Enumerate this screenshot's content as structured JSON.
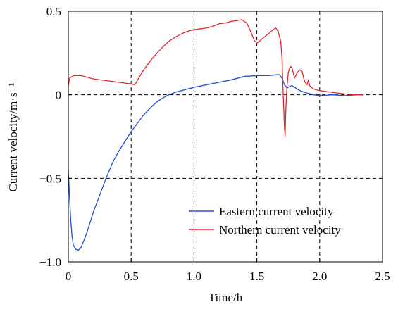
{
  "chart_data": {
    "type": "line",
    "xlabel": "Time/h",
    "ylabel": "Current velocity/m·s⁻¹",
    "xlim": [
      0,
      2.5
    ],
    "ylim": [
      -1.0,
      0.5
    ],
    "xticks": [
      0,
      0.5,
      1.0,
      1.5,
      2.0,
      2.5
    ],
    "xtick_labels": [
      "0",
      "0.5",
      "1.0",
      "1.5",
      "2.0",
      "2.5"
    ],
    "yticks": [
      -1.0,
      -0.5,
      0,
      0.5
    ],
    "ytick_labels": [
      "−1.0",
      "−0.5",
      "0",
      "0.5"
    ],
    "grid": "dashed",
    "legend": "bottom-right",
    "series": [
      {
        "name": "Eastern current velocity",
        "color": "#1f4fd6",
        "points": [
          [
            0.0,
            -0.45
          ],
          [
            0.01,
            -0.62
          ],
          [
            0.02,
            -0.76
          ],
          [
            0.03,
            -0.85
          ],
          [
            0.04,
            -0.9
          ],
          [
            0.06,
            -0.925
          ],
          [
            0.08,
            -0.93
          ],
          [
            0.1,
            -0.915
          ],
          [
            0.12,
            -0.88
          ],
          [
            0.15,
            -0.82
          ],
          [
            0.2,
            -0.7
          ],
          [
            0.25,
            -0.6
          ],
          [
            0.3,
            -0.5
          ],
          [
            0.35,
            -0.41
          ],
          [
            0.4,
            -0.34
          ],
          [
            0.45,
            -0.28
          ],
          [
            0.5,
            -0.22
          ],
          [
            0.55,
            -0.17
          ],
          [
            0.6,
            -0.12
          ],
          [
            0.65,
            -0.08
          ],
          [
            0.7,
            -0.045
          ],
          [
            0.75,
            -0.02
          ],
          [
            0.8,
            0.0
          ],
          [
            0.85,
            0.015
          ],
          [
            0.9,
            0.025
          ],
          [
            1.0,
            0.045
          ],
          [
            1.1,
            0.06
          ],
          [
            1.2,
            0.075
          ],
          [
            1.3,
            0.09
          ],
          [
            1.4,
            0.11
          ],
          [
            1.5,
            0.115
          ],
          [
            1.6,
            0.115
          ],
          [
            1.65,
            0.12
          ],
          [
            1.68,
            0.12
          ],
          [
            1.7,
            0.1
          ],
          [
            1.72,
            0.06
          ],
          [
            1.74,
            0.04
          ],
          [
            1.76,
            0.05
          ],
          [
            1.78,
            0.055
          ],
          [
            1.8,
            0.045
          ],
          [
            1.83,
            0.03
          ],
          [
            1.86,
            0.02
          ],
          [
            1.9,
            0.01
          ],
          [
            1.95,
            0.0
          ],
          [
            2.0,
            -0.005
          ],
          [
            2.1,
            0.0
          ],
          [
            2.2,
            -0.005
          ],
          [
            2.3,
            0.0
          ],
          [
            2.35,
            0.0
          ]
        ]
      },
      {
        "name": "Northern current velocity",
        "color": "#e8262a",
        "points": [
          [
            0.0,
            0.05
          ],
          [
            0.01,
            0.1
          ],
          [
            0.03,
            0.11
          ],
          [
            0.05,
            0.115
          ],
          [
            0.1,
            0.115
          ],
          [
            0.15,
            0.105
          ],
          [
            0.2,
            0.095
          ],
          [
            0.3,
            0.085
          ],
          [
            0.4,
            0.075
          ],
          [
            0.5,
            0.065
          ],
          [
            0.53,
            0.06
          ],
          [
            0.56,
            0.1
          ],
          [
            0.6,
            0.15
          ],
          [
            0.65,
            0.2
          ],
          [
            0.7,
            0.245
          ],
          [
            0.75,
            0.285
          ],
          [
            0.8,
            0.32
          ],
          [
            0.85,
            0.345
          ],
          [
            0.9,
            0.365
          ],
          [
            0.95,
            0.38
          ],
          [
            1.0,
            0.39
          ],
          [
            1.05,
            0.395
          ],
          [
            1.1,
            0.4
          ],
          [
            1.15,
            0.41
          ],
          [
            1.2,
            0.425
          ],
          [
            1.25,
            0.43
          ],
          [
            1.3,
            0.44
          ],
          [
            1.35,
            0.445
          ],
          [
            1.38,
            0.45
          ],
          [
            1.42,
            0.43
          ],
          [
            1.45,
            0.38
          ],
          [
            1.48,
            0.325
          ],
          [
            1.5,
            0.31
          ],
          [
            1.52,
            0.32
          ],
          [
            1.55,
            0.34
          ],
          [
            1.6,
            0.37
          ],
          [
            1.63,
            0.39
          ],
          [
            1.65,
            0.4
          ],
          [
            1.67,
            0.38
          ],
          [
            1.69,
            0.32
          ],
          [
            1.7,
            0.22
          ],
          [
            1.71,
            0.0
          ],
          [
            1.72,
            -0.2
          ],
          [
            1.725,
            -0.25
          ],
          [
            1.73,
            -0.1
          ],
          [
            1.74,
            0.05
          ],
          [
            1.75,
            0.13
          ],
          [
            1.76,
            0.16
          ],
          [
            1.77,
            0.17
          ],
          [
            1.78,
            0.16
          ],
          [
            1.8,
            0.1
          ],
          [
            1.82,
            0.13
          ],
          [
            1.84,
            0.15
          ],
          [
            1.86,
            0.14
          ],
          [
            1.88,
            0.08
          ],
          [
            1.9,
            0.06
          ],
          [
            1.91,
            0.09
          ],
          [
            1.92,
            0.055
          ],
          [
            1.95,
            0.035
          ],
          [
            2.0,
            0.025
          ],
          [
            2.1,
            0.015
          ],
          [
            2.2,
            0.005
          ],
          [
            2.3,
            0.0
          ],
          [
            2.35,
            0.0
          ]
        ]
      }
    ]
  }
}
